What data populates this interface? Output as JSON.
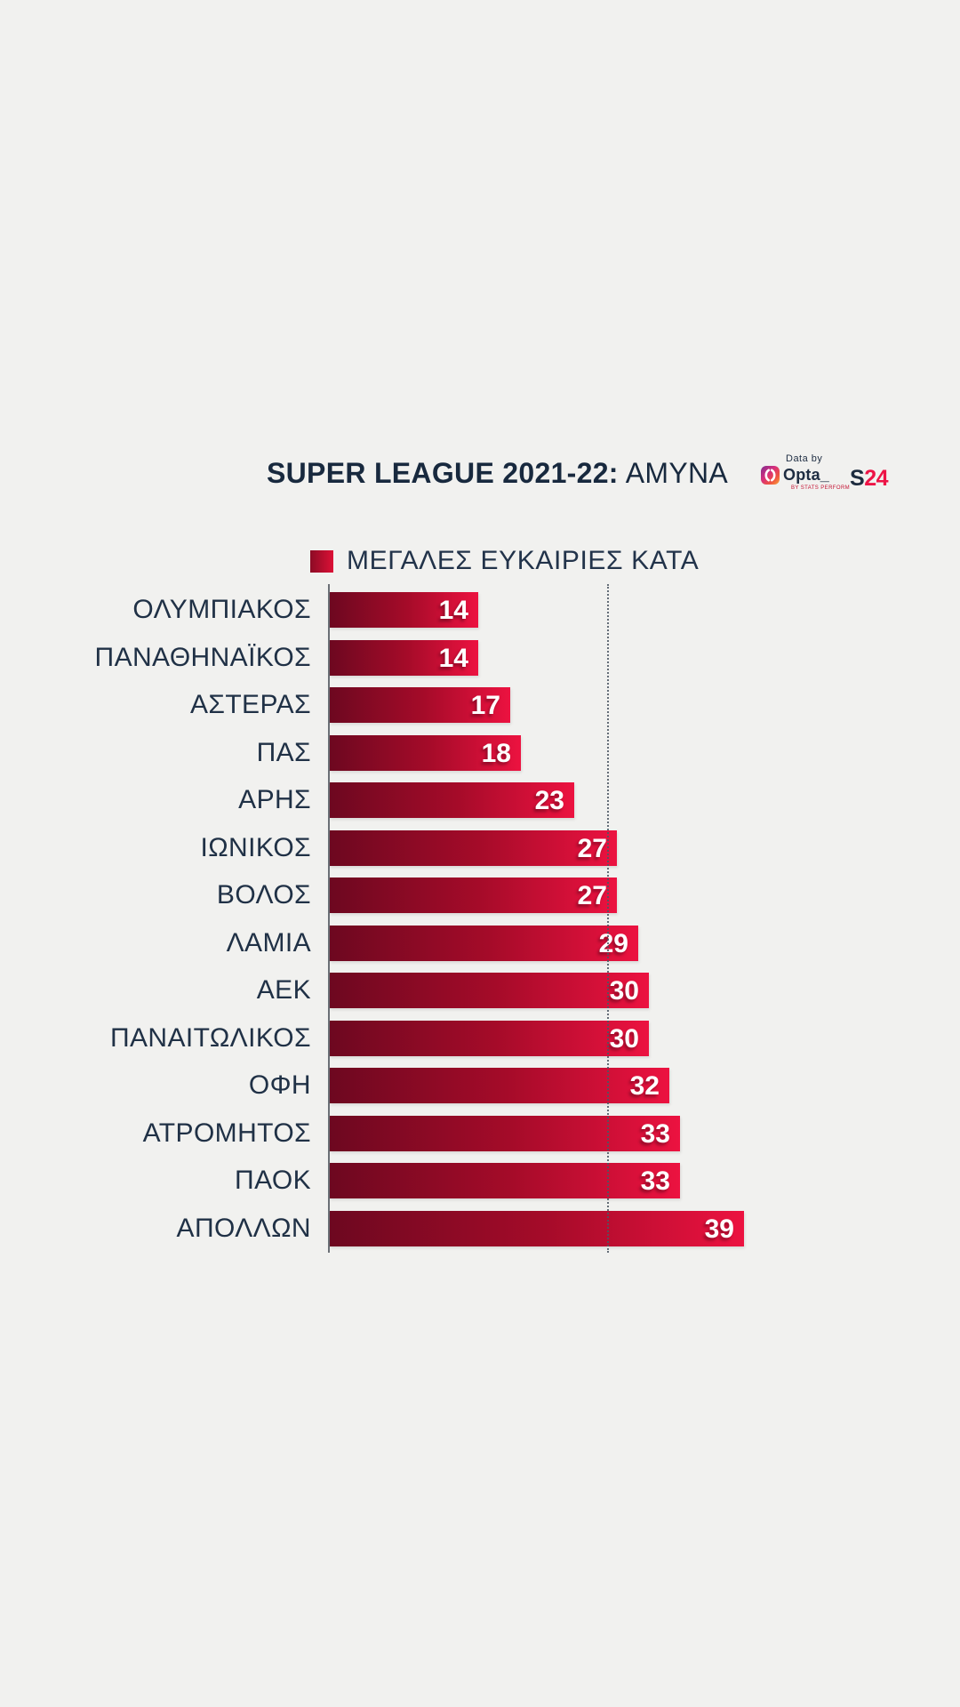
{
  "header": {
    "title_bold": "SUPER LEAGUE 2021-22:",
    "title_regular": "ΑΜΥΝΑ",
    "logos": {
      "opta": {
        "data_by": "Data by",
        "wordmark": "Opta_",
        "sub": "BY STATS PERFORM"
      },
      "s24": {
        "s": "S",
        "num": "24"
      }
    }
  },
  "legend": {
    "label": "ΜΕΓΑΛΕΣ ΕΥΚΑΙΡΙΕΣ ΚΑΤΑ"
  },
  "colors": {
    "background": "#f1f1ef",
    "navy_text": "#1e2d42",
    "bar_gradient_start": "#6d0820",
    "bar_gradient_end": "#ec1240",
    "s24_red": "#ed1446",
    "axis_gray": "#6b7076"
  },
  "chart_data": {
    "type": "bar",
    "orientation": "horizontal",
    "title": "SUPER LEAGUE 2021-22: ΑΜΥΝΑ",
    "series_label": "ΜΕΓΑΛΕΣ ΕΥΚΑΙΡΙΕΣ ΚΑΤΑ",
    "categories": [
      "ΟΛΥΜΠΙΑΚΟΣ",
      "ΠΑΝΑΘΗΝΑΪΚΟΣ",
      "ΑΣΤΕΡΑΣ",
      "ΠΑΣ",
      "ΑΡΗΣ",
      "ΙΩΝΙΚΟΣ",
      "ΒΟΛΟΣ",
      "ΛΑΜΙΑ",
      "ΑΕΚ",
      "ΠΑΝΑΙΤΩΛΙΚΟΣ",
      "ΟΦΗ",
      "ΑΤΡΟΜΗΤΟΣ",
      "ΠΑΟΚ",
      "ΑΠΟΛΛΩΝ"
    ],
    "values": [
      14,
      14,
      17,
      18,
      23,
      27,
      27,
      29,
      30,
      30,
      32,
      33,
      33,
      39
    ],
    "value_labels_inside_bars": true,
    "xlim": [
      0,
      41
    ],
    "average_line_value": 26.1,
    "grid": false,
    "legend_position": "top"
  }
}
